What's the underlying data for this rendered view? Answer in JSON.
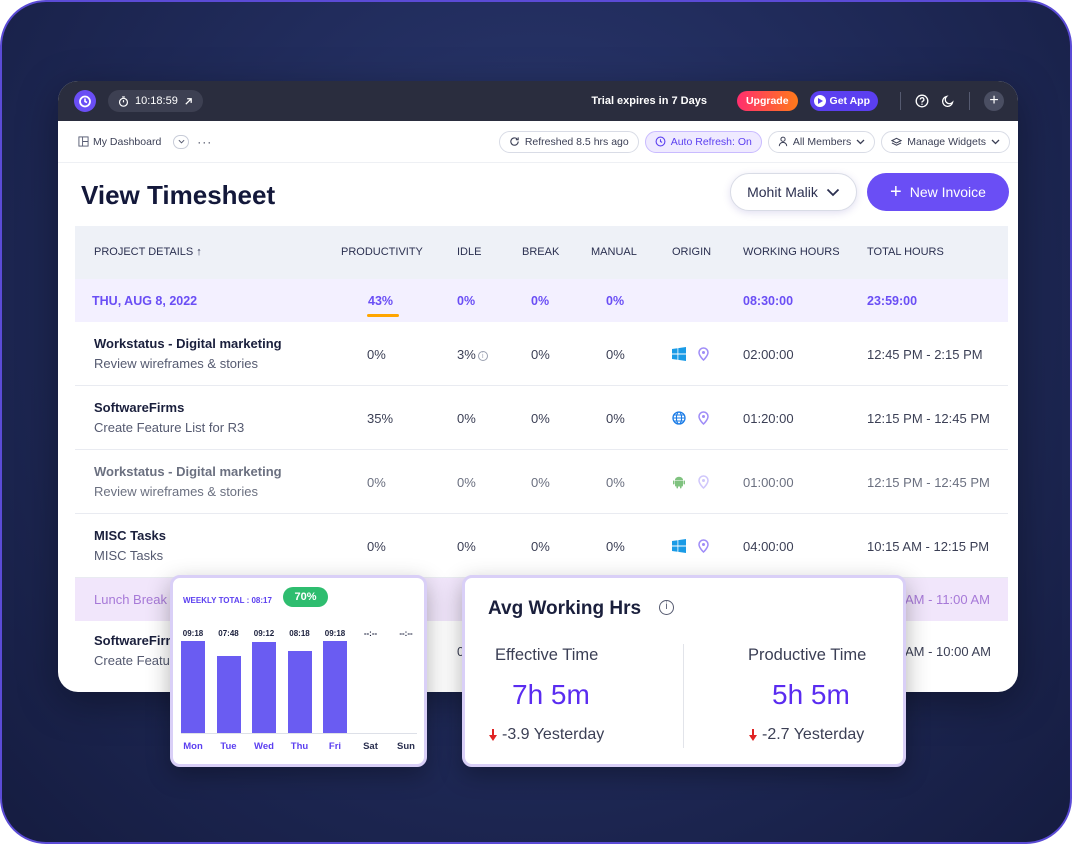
{
  "topbar": {
    "timer": "10:18:59",
    "trial": "Trial expires in 7 Days",
    "upgrade": "Upgrade",
    "get_app": "Get App"
  },
  "subbar": {
    "dashboard": "My Dashboard",
    "refreshed": "Refreshed 8.5 hrs ago",
    "auto_refresh": "Auto Refresh: On",
    "members": "All Members",
    "widgets": "Manage Widgets"
  },
  "page": {
    "title": "View Timesheet",
    "member": "Mohit Malik",
    "new_invoice": "New Invoice"
  },
  "table": {
    "headers": {
      "project": "PROJECT DETAILS ↑",
      "productivity": "PRODUCTIVITY",
      "idle": "IDLE",
      "break": "BREAK",
      "manual": "MANUAL",
      "origin": "ORIGIN",
      "working": "WORKING HOURS",
      "total": "TOTAL HOURS"
    },
    "date_row": {
      "date": "THU, AUG 8, 2022",
      "productivity": "43%",
      "idle": "0%",
      "break": "0%",
      "manual": "0%",
      "working": "08:30:00",
      "total": "23:59:00"
    },
    "rows": [
      {
        "name": "Workstatus - Digital marketing",
        "task": "Review wireframes & stories",
        "productivity": "0%",
        "idle": "3%",
        "break": "0%",
        "manual": "0%",
        "origin": "windows-icon",
        "working": "02:00:00",
        "total": "12:45 PM - 2:15 PM"
      },
      {
        "name": "SoftwareFirms",
        "task": "Create Feature List for R3",
        "productivity": "35%",
        "idle": "0%",
        "break": "0%",
        "manual": "0%",
        "origin": "globe-icon",
        "working": "01:20:00",
        "total": "12:15 PM - 12:45 PM"
      },
      {
        "name": "Workstatus - Digital marketing",
        "task": "Review wireframes & stories",
        "productivity": "0%",
        "idle": "0%",
        "break": "0%",
        "manual": "0%",
        "origin": "android-icon",
        "working": "01:00:00",
        "total": "12:15 PM - 12:45 PM"
      },
      {
        "name": "MISC Tasks",
        "task": "MISC Tasks",
        "productivity": "0%",
        "idle": "0%",
        "break": "0%",
        "manual": "0%",
        "origin": "windows-icon",
        "working": "04:00:00",
        "total": "10:15 AM - 12:15 PM"
      },
      {
        "name": "SoftwareFirm",
        "task": "Create Featu",
        "idle": "0",
        "total": "AM - 10:00 AM"
      }
    ],
    "lunch": {
      "label": "Lunch Break",
      "total": "AM - 11:00 AM"
    }
  },
  "weekly": {
    "total_label": "WEEKLY TOTAL :",
    "total_value": "08:17",
    "percent": "70%",
    "days": [
      {
        "day": "Mon",
        "label": "09:18",
        "hours": 9.3
      },
      {
        "day": "Tue",
        "label": "07:48",
        "hours": 7.8
      },
      {
        "day": "Wed",
        "label": "09:12",
        "hours": 9.2
      },
      {
        "day": "Thu",
        "label": "08:18",
        "hours": 8.3
      },
      {
        "day": "Fri",
        "label": "09:18",
        "hours": 9.3
      },
      {
        "day": "Sat",
        "label": "--:--",
        "hours": 0
      },
      {
        "day": "Sun",
        "label": "--:--",
        "hours": 0
      }
    ]
  },
  "avg": {
    "title": "Avg Working Hrs",
    "effective_label": "Effective Time",
    "effective_value": "7h 5m",
    "effective_delta": "-3.9 Yesterday",
    "productive_label": "Productive Time",
    "productive_value": "5h 5m",
    "productive_delta": "-2.7 Yesterday"
  },
  "colors": {
    "accent": "#6a4ef5",
    "topbar": "#2a2d3e",
    "badge_green": "#2ebd6f",
    "delta_red": "#e02424"
  }
}
